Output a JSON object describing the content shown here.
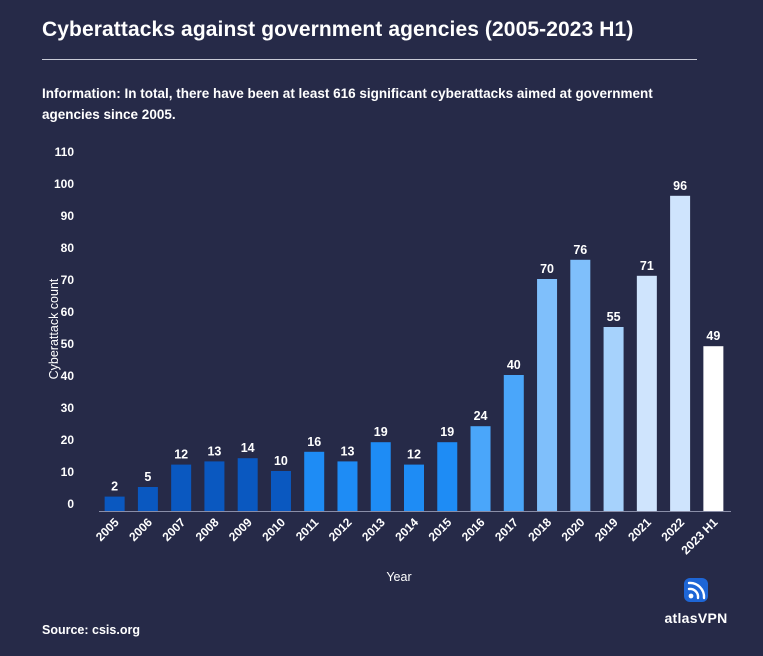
{
  "header": {
    "title": "Cyberattacks against government agencies (2005-2023 H1)",
    "info_label": "Information:",
    "info_text": "In total, there have been at least 616 significant cyberattacks aimed at government agencies since 2005."
  },
  "footer": {
    "source": "Source: csis.org",
    "brand": "atlasVPN"
  },
  "colors": {
    "background": "#262a48",
    "bar_2005_2010": "#0a58c0",
    "bar_2011_2015": "#1e8cf5",
    "bar_2016_2017": "#4aa6fa",
    "bar_2018_2020": "#7fbffb",
    "bar_2019": "#a6d2fc",
    "bar_2021_2022": "#cfe4fd",
    "bar_2023": "#ffffff"
  },
  "chart_data": {
    "type": "bar",
    "xlabel": "Year",
    "ylabel": "Cyberattack count",
    "ylim": [
      0,
      110
    ],
    "yticks": [
      0,
      10,
      20,
      30,
      40,
      50,
      60,
      70,
      80,
      90,
      100,
      110
    ],
    "grid": false,
    "categories": [
      "2005",
      "2006",
      "2007",
      "2008",
      "2009",
      "2010",
      "2011",
      "2012",
      "2013",
      "2014",
      "2015",
      "2016",
      "2017",
      "2018",
      "2020",
      "2019",
      "2021",
      "2022",
      "2023 H1"
    ],
    "values": [
      2,
      5,
      12,
      13,
      14,
      10,
      16,
      13,
      19,
      12,
      19,
      24,
      40,
      70,
      76,
      55,
      71,
      96,
      49
    ],
    "bar_colors": [
      "#0a58c0",
      "#0a58c0",
      "#0a58c0",
      "#0a58c0",
      "#0a58c0",
      "#0a58c0",
      "#1e8cf5",
      "#1e8cf5",
      "#1e8cf5",
      "#1e8cf5",
      "#1e8cf5",
      "#4aa6fa",
      "#4aa6fa",
      "#7fbffb",
      "#7fbffb",
      "#a6d2fc",
      "#cfe4fd",
      "#cfe4fd",
      "#ffffff"
    ]
  }
}
